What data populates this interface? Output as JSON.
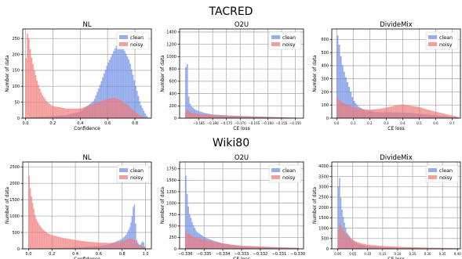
{
  "figure": {
    "row_titles": [
      "TACRED",
      "Wiki80"
    ]
  },
  "legend_labels": [
    "clean",
    "noisy"
  ],
  "colors": {
    "clean": "#6f8fe6",
    "noisy": "#f07a78"
  },
  "chart_data": [
    {
      "type": "histogram",
      "row": "TACRED",
      "title": "NL",
      "xlabel": "Confidence",
      "ylabel": "Number of data",
      "xlim": [
        -0.02,
        0.92
      ],
      "ylim": [
        0,
        280
      ],
      "xticks": [
        0.0,
        0.2,
        0.4,
        0.6,
        0.8
      ],
      "xtick_labels": [
        "0.0",
        "0.2",
        "0.4",
        "0.6",
        "0.8"
      ],
      "yticks": [
        0,
        50,
        100,
        150,
        200,
        250
      ],
      "ytick_labels": [
        "0",
        "50",
        "100",
        "150",
        "200",
        "250"
      ],
      "legend": "top-right",
      "grid": true,
      "x_range": [
        0.0,
        0.9
      ],
      "bins": 90,
      "series": [
        {
          "name": "clean",
          "points": [
            [
              0.0,
              0
            ],
            [
              0.05,
              3
            ],
            [
              0.15,
              5
            ],
            [
              0.3,
              10
            ],
            [
              0.4,
              20
            ],
            [
              0.5,
              55
            ],
            [
              0.55,
              110
            ],
            [
              0.6,
              170
            ],
            [
              0.65,
              215
            ],
            [
              0.68,
              240
            ],
            [
              0.72,
              215
            ],
            [
              0.76,
              180
            ],
            [
              0.8,
              110
            ],
            [
              0.84,
              45
            ],
            [
              0.88,
              10
            ],
            [
              0.9,
              0
            ]
          ]
        },
        {
          "name": "noisy",
          "points": [
            [
              0.0,
              150
            ],
            [
              0.015,
              265
            ],
            [
              0.025,
              250
            ],
            [
              0.04,
              200
            ],
            [
              0.06,
              160
            ],
            [
              0.09,
              110
            ],
            [
              0.12,
              75
            ],
            [
              0.16,
              50
            ],
            [
              0.2,
              38
            ],
            [
              0.3,
              30
            ],
            [
              0.4,
              30
            ],
            [
              0.5,
              45
            ],
            [
              0.6,
              60
            ],
            [
              0.65,
              65
            ],
            [
              0.7,
              55
            ],
            [
              0.75,
              40
            ],
            [
              0.8,
              20
            ],
            [
              0.85,
              5
            ],
            [
              0.9,
              0
            ]
          ]
        }
      ]
    },
    {
      "type": "histogram",
      "row": "TACRED",
      "title": "O2U",
      "xlabel": "CE loss",
      "ylabel": "Number of data",
      "xlim": [
        -0.192,
        -0.147
      ],
      "ylim": [
        0,
        1450
      ],
      "xticks": [
        -0.185,
        -0.18,
        -0.175,
        -0.17,
        -0.165,
        -0.16,
        -0.155,
        -0.15
      ],
      "xtick_labels": [
        "−0.185",
        "−0.180",
        "−0.175",
        "−0.170",
        "−0.165",
        "−0.160",
        "−0.155",
        "−0.150"
      ],
      "yticks": [
        0,
        200,
        400,
        600,
        800,
        1000,
        1200,
        1400
      ],
      "ytick_labels": [
        "0",
        "200",
        "400",
        "600",
        "800",
        "1000",
        "1200",
        "1400"
      ],
      "legend": "top-right",
      "grid": true,
      "x_range": [
        -0.19,
        -0.149
      ],
      "bins": 80,
      "series": [
        {
          "name": "clean",
          "points": [
            [
              -0.19,
              250
            ],
            [
              -0.1895,
              1380
            ],
            [
              -0.189,
              450
            ],
            [
              -0.1885,
              280
            ],
            [
              -0.188,
              200
            ],
            [
              -0.186,
              130
            ],
            [
              -0.183,
              85
            ],
            [
              -0.18,
              60
            ],
            [
              -0.175,
              45
            ],
            [
              -0.17,
              35
            ],
            [
              -0.165,
              28
            ],
            [
              -0.16,
              22
            ],
            [
              -0.155,
              15
            ],
            [
              -0.15,
              8
            ],
            [
              -0.149,
              5
            ]
          ]
        },
        {
          "name": "noisy",
          "points": [
            [
              -0.19,
              40
            ],
            [
              -0.1895,
              160
            ],
            [
              -0.189,
              130
            ],
            [
              -0.188,
              95
            ],
            [
              -0.186,
              70
            ],
            [
              -0.183,
              60
            ],
            [
              -0.18,
              50
            ],
            [
              -0.175,
              40
            ],
            [
              -0.17,
              32
            ],
            [
              -0.165,
              25
            ],
            [
              -0.16,
              18
            ],
            [
              -0.155,
              12
            ],
            [
              -0.15,
              6
            ],
            [
              -0.149,
              4
            ]
          ]
        }
      ]
    },
    {
      "type": "histogram",
      "row": "TACRED",
      "title": "DivideMix",
      "xlabel": "CE loss",
      "ylabel": "Number of data",
      "xlim": [
        -0.03,
        0.75
      ],
      "ylim": [
        0,
        680
      ],
      "xticks": [
        0.0,
        0.1,
        0.2,
        0.3,
        0.4,
        0.5,
        0.6,
        0.7
      ],
      "xtick_labels": [
        "0.0",
        "0.1",
        "0.2",
        "0.3",
        "0.4",
        "0.5",
        "0.6",
        "0.7"
      ],
      "yticks": [
        0,
        100,
        200,
        300,
        400,
        500,
        600
      ],
      "ytick_labels": [
        "0",
        "100",
        "200",
        "300",
        "400",
        "500",
        "600"
      ],
      "legend": "top-right",
      "grid": true,
      "x_range": [
        0.0,
        0.74
      ],
      "bins": 74,
      "series": [
        {
          "name": "clean",
          "points": [
            [
              0.0,
              280
            ],
            [
              0.005,
              630
            ],
            [
              0.015,
              560
            ],
            [
              0.03,
              430
            ],
            [
              0.05,
              330
            ],
            [
              0.08,
              220
            ],
            [
              0.1,
              140
            ],
            [
              0.13,
              90
            ],
            [
              0.17,
              60
            ],
            [
              0.25,
              45
            ],
            [
              0.35,
              45
            ],
            [
              0.45,
              40
            ],
            [
              0.55,
              28
            ],
            [
              0.65,
              15
            ],
            [
              0.74,
              5
            ]
          ]
        },
        {
          "name": "noisy",
          "points": [
            [
              0.0,
              60
            ],
            [
              0.005,
              160
            ],
            [
              0.02,
              130
            ],
            [
              0.05,
              110
            ],
            [
              0.1,
              85
            ],
            [
              0.15,
              70
            ],
            [
              0.2,
              65
            ],
            [
              0.25,
              70
            ],
            [
              0.3,
              80
            ],
            [
              0.35,
              95
            ],
            [
              0.4,
              105
            ],
            [
              0.45,
              95
            ],
            [
              0.5,
              85
            ],
            [
              0.55,
              65
            ],
            [
              0.6,
              50
            ],
            [
              0.65,
              35
            ],
            [
              0.7,
              20
            ],
            [
              0.74,
              8
            ]
          ]
        }
      ]
    },
    {
      "type": "histogram",
      "row": "Wiki80",
      "title": "NL",
      "xlabel": "Confidence",
      "ylabel": "Number of data",
      "xlim": [
        -0.05,
        1.05
      ],
      "ylim": [
        0,
        2650
      ],
      "xticks": [
        0.0,
        0.2,
        0.4,
        0.6,
        0.8,
        1.0
      ],
      "xtick_labels": [
        "0.0",
        "0.2",
        "0.4",
        "0.6",
        "0.8",
        "1.0"
      ],
      "yticks": [
        0,
        500,
        1000,
        1500,
        2000,
        2500
      ],
      "ytick_labels": [
        "0",
        "500",
        "1000",
        "1500",
        "2000",
        "2500"
      ],
      "legend": "top-right",
      "grid": true,
      "x_range": [
        0.0,
        1.0
      ],
      "bins": 100,
      "series": [
        {
          "name": "clean",
          "points": [
            [
              0.0,
              0
            ],
            [
              0.2,
              20
            ],
            [
              0.4,
              40
            ],
            [
              0.6,
              80
            ],
            [
              0.7,
              150
            ],
            [
              0.8,
              300
            ],
            [
              0.84,
              450
            ],
            [
              0.87,
              700
            ],
            [
              0.89,
              1100
            ],
            [
              0.9,
              1450
            ],
            [
              0.91,
              1250
            ],
            [
              0.92,
              300
            ],
            [
              0.95,
              100
            ],
            [
              0.98,
              250
            ],
            [
              1.0,
              20
            ]
          ]
        },
        {
          "name": "noisy",
          "points": [
            [
              0.0,
              2450
            ],
            [
              0.01,
              2000
            ],
            [
              0.02,
              1700
            ],
            [
              0.04,
              1300
            ],
            [
              0.06,
              950
            ],
            [
              0.09,
              750
            ],
            [
              0.12,
              600
            ],
            [
              0.16,
              480
            ],
            [
              0.2,
              420
            ],
            [
              0.3,
              330
            ],
            [
              0.4,
              270
            ],
            [
              0.5,
              220
            ],
            [
              0.6,
              190
            ],
            [
              0.7,
              180
            ],
            [
              0.8,
              220
            ],
            [
              0.86,
              320
            ],
            [
              0.9,
              300
            ],
            [
              0.93,
              150
            ],
            [
              0.97,
              80
            ],
            [
              1.0,
              40
            ]
          ]
        }
      ]
    },
    {
      "type": "histogram",
      "row": "Wiki80",
      "title": "O2U",
      "xlabel": "CE loss",
      "ylabel": "Number of data",
      "xlim": [
        -0.3363,
        -0.3297
      ],
      "ylim": [
        0,
        1900
      ],
      "xticks": [
        -0.336,
        -0.335,
        -0.334,
        -0.333,
        -0.332,
        -0.331,
        -0.33
      ],
      "xtick_labels": [
        "−0.336",
        "−0.335",
        "−0.334",
        "−0.333",
        "−0.332",
        "−0.331",
        "−0.330"
      ],
      "yticks": [
        0,
        250,
        500,
        750,
        1000,
        1250,
        1500,
        1750
      ],
      "ytick_labels": [
        "0",
        "250",
        "500",
        "750",
        "1000",
        "1250",
        "1500",
        "1750"
      ],
      "legend": "top-right",
      "grid": true,
      "x_range": [
        -0.336,
        -0.32995
      ],
      "bins": 90,
      "series": [
        {
          "name": "clean",
          "points": [
            [
              -0.336,
              1800
            ],
            [
              -0.3359,
              1200
            ],
            [
              -0.3358,
              800
            ],
            [
              -0.3356,
              550
            ],
            [
              -0.3354,
              380
            ],
            [
              -0.335,
              260
            ],
            [
              -0.3345,
              180
            ],
            [
              -0.334,
              120
            ],
            [
              -0.3335,
              80
            ],
            [
              -0.333,
              55
            ],
            [
              -0.332,
              40
            ],
            [
              -0.331,
              30
            ],
            [
              -0.33,
              20
            ]
          ]
        },
        {
          "name": "noisy",
          "points": [
            [
              -0.336,
              400
            ],
            [
              -0.3359,
              350
            ],
            [
              -0.3357,
              300
            ],
            [
              -0.3355,
              260
            ],
            [
              -0.335,
              200
            ],
            [
              -0.3345,
              160
            ],
            [
              -0.334,
              120
            ],
            [
              -0.3335,
              90
            ],
            [
              -0.333,
              70
            ],
            [
              -0.332,
              50
            ],
            [
              -0.331,
              35
            ],
            [
              -0.33,
              20
            ]
          ]
        }
      ]
    },
    {
      "type": "histogram",
      "row": "Wiki80",
      "title": "DivideMix",
      "xlabel": "CE loss",
      "ylabel": "Number of data",
      "xlim": [
        -0.02,
        0.41
      ],
      "ylim": [
        0,
        4200
      ],
      "xticks": [
        0.0,
        0.05,
        0.1,
        0.15,
        0.2,
        0.25,
        0.3,
        0.35,
        0.4
      ],
      "xtick_labels": [
        "0.00",
        "0.05",
        "0.10",
        "0.15",
        "0.20",
        "0.25",
        "0.30",
        "0.35",
        "0.40"
      ],
      "yticks": [
        0,
        500,
        1000,
        1500,
        2000,
        2500,
        3000,
        3500,
        4000
      ],
      "ytick_labels": [
        "0",
        "500",
        "1000",
        "1500",
        "2000",
        "2500",
        "3000",
        "3500",
        "4000"
      ],
      "legend": "top-right",
      "grid": true,
      "x_range": [
        0.0,
        0.405
      ],
      "bins": 100,
      "series": [
        {
          "name": "clean",
          "points": [
            [
              0.0,
              2000
            ],
            [
              0.004,
              4000
            ],
            [
              0.008,
              2900
            ],
            [
              0.012,
              2100
            ],
            [
              0.02,
              1400
            ],
            [
              0.03,
              800
            ],
            [
              0.05,
              400
            ],
            [
              0.07,
              220
            ],
            [
              0.1,
              130
            ],
            [
              0.15,
              80
            ],
            [
              0.2,
              55
            ],
            [
              0.3,
              30
            ],
            [
              0.4,
              15
            ]
          ]
        },
        {
          "name": "noisy",
          "points": [
            [
              0.0,
              500
            ],
            [
              0.004,
              1300
            ],
            [
              0.008,
              1200
            ],
            [
              0.015,
              1000
            ],
            [
              0.025,
              750
            ],
            [
              0.04,
              520
            ],
            [
              0.06,
              360
            ],
            [
              0.08,
              260
            ],
            [
              0.1,
              200
            ],
            [
              0.15,
              140
            ],
            [
              0.2,
              100
            ],
            [
              0.3,
              60
            ],
            [
              0.4,
              30
            ]
          ]
        }
      ]
    }
  ]
}
